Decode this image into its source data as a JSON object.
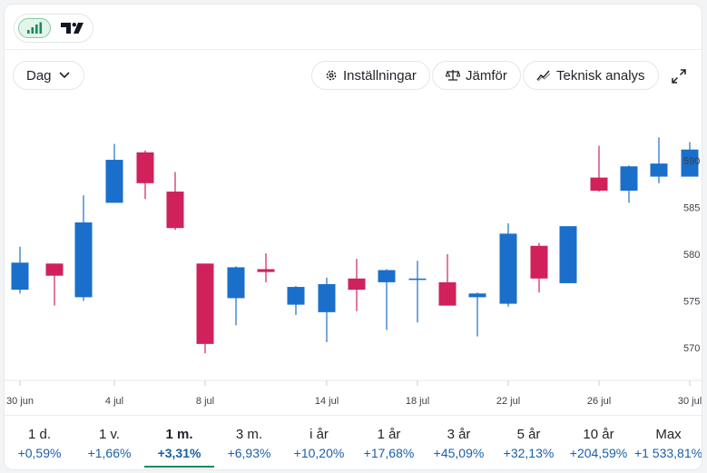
{
  "toolbar": {
    "chart_type_icon": "bar-signal-icon",
    "provider_icon": "tradingview-logo-icon",
    "period_select": "Dag",
    "settings_label": "Inställningar",
    "compare_label": "Jämför",
    "technical_label": "Teknisk analys",
    "expand_icon": "expand-arrows-icon"
  },
  "colors": {
    "up": "#1a6fca",
    "down": "#d0215a",
    "active_tab": "#1a8a5a",
    "change_text": "#1a5fa8"
  },
  "chart_data": {
    "type": "candlestick",
    "y_ticks": [
      "570",
      "575",
      "580",
      "585",
      "590"
    ],
    "ylim": [
      566.5,
      597
    ],
    "x_tick_labels": [
      "30 jun",
      "4 jul",
      "8 jul",
      "14 jul",
      "18 jul",
      "22 jul",
      "26 jul",
      "30 jul"
    ],
    "x_tick_index": [
      0,
      4,
      8,
      12,
      16,
      20,
      24,
      28
    ],
    "grid": false,
    "candles": [
      {
        "open": 576.2,
        "high": 580.8,
        "low": 575.8,
        "close": 579.1
      },
      {
        "open": 579.0,
        "high": 579.0,
        "low": 574.5,
        "close": 577.7
      },
      {
        "open": 575.4,
        "high": 586.3,
        "low": 575.0,
        "close": 583.4
      },
      {
        "open": 585.5,
        "high": 591.8,
        "low": 585.5,
        "close": 590.1
      },
      {
        "open": 590.9,
        "high": 591.1,
        "low": 585.9,
        "close": 587.6
      },
      {
        "open": 586.7,
        "high": 588.8,
        "low": 582.6,
        "close": 582.8
      },
      {
        "open": 579.0,
        "high": 579.0,
        "low": 569.4,
        "close": 570.4
      },
      {
        "open": 575.3,
        "high": 578.7,
        "low": 572.4,
        "close": 578.6
      },
      {
        "open": 578.4,
        "high": 580.1,
        "low": 577.0,
        "close": 578.1
      },
      {
        "open": 574.6,
        "high": 576.6,
        "low": 573.5,
        "close": 576.5
      },
      {
        "open": 573.8,
        "high": 577.5,
        "low": 570.6,
        "close": 576.8
      },
      {
        "open": 577.4,
        "high": 579.5,
        "low": 573.9,
        "close": 576.2
      },
      {
        "open": 577.0,
        "high": 578.4,
        "low": 571.9,
        "close": 578.3
      },
      {
        "open": 577.4,
        "high": 579.3,
        "low": 572.7,
        "close": 577.4
      },
      {
        "open": 577.0,
        "high": 580.0,
        "low": 574.5,
        "close": 574.5
      },
      {
        "open": 575.4,
        "high": 575.9,
        "low": 571.2,
        "close": 575.8
      },
      {
        "open": 574.7,
        "high": 583.3,
        "low": 574.4,
        "close": 582.2
      },
      {
        "open": 580.9,
        "high": 581.2,
        "low": 575.9,
        "close": 577.4
      },
      {
        "open": 576.9,
        "high": 583.0,
        "low": 576.9,
        "close": 583.0
      },
      {
        "open": 588.2,
        "high": 591.6,
        "low": 586.7,
        "close": 586.8
      },
      {
        "open": 586.8,
        "high": 589.5,
        "low": 585.5,
        "close": 589.4
      },
      {
        "open": 588.3,
        "high": 592.5,
        "low": 587.6,
        "close": 589.7
      },
      {
        "open": 588.3,
        "high": 592.0,
        "low": 588.3,
        "close": 591.2
      }
    ]
  },
  "ranges": [
    {
      "label": "1 d.",
      "change": "+0,59%"
    },
    {
      "label": "1 v.",
      "change": "+1,66%"
    },
    {
      "label": "1 m.",
      "change": "+3,31%",
      "active": true
    },
    {
      "label": "3 m.",
      "change": "+6,93%"
    },
    {
      "label": "i år",
      "change": "+10,20%"
    },
    {
      "label": "1 år",
      "change": "+17,68%"
    },
    {
      "label": "3 år",
      "change": "+45,09%"
    },
    {
      "label": "5 år",
      "change": "+32,13%"
    },
    {
      "label": "10 år",
      "change": "+204,59%"
    },
    {
      "label": "Max",
      "change": "+1 533,81%"
    }
  ]
}
